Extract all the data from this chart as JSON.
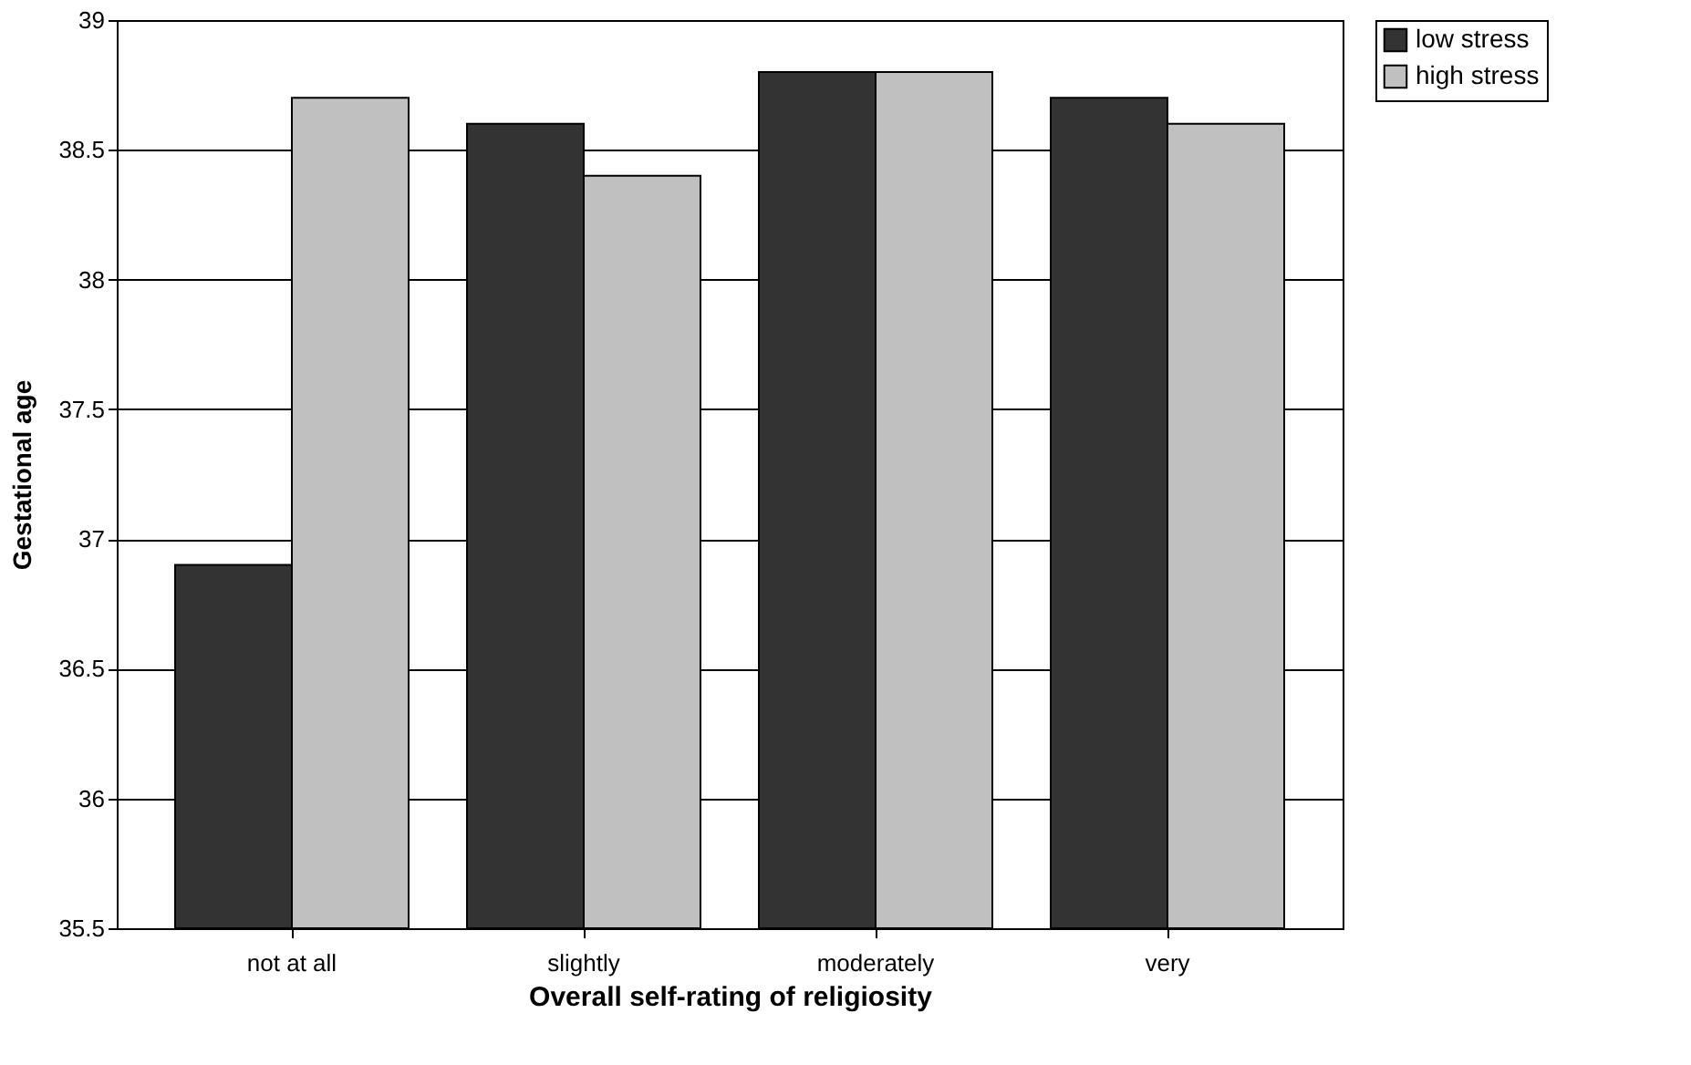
{
  "chart_data": {
    "type": "bar",
    "xlabel": "Overall self-rating of religiosity",
    "ylabel": "Gestational age",
    "categories": [
      "not at all",
      "slightly",
      "moderately",
      "very"
    ],
    "series": [
      {
        "name": "low stress",
        "color": "#333333",
        "values": [
          36.9,
          38.6,
          38.8,
          38.7
        ]
      },
      {
        "name": "high stress",
        "color": "#c0c0c0",
        "values": [
          38.7,
          38.4,
          38.8,
          38.6
        ]
      }
    ],
    "ylim": [
      35.5,
      39
    ],
    "yticks": [
      35.5,
      36,
      36.5,
      37,
      37.5,
      38,
      38.5,
      39
    ],
    "grid": "y",
    "legend": "right"
  }
}
